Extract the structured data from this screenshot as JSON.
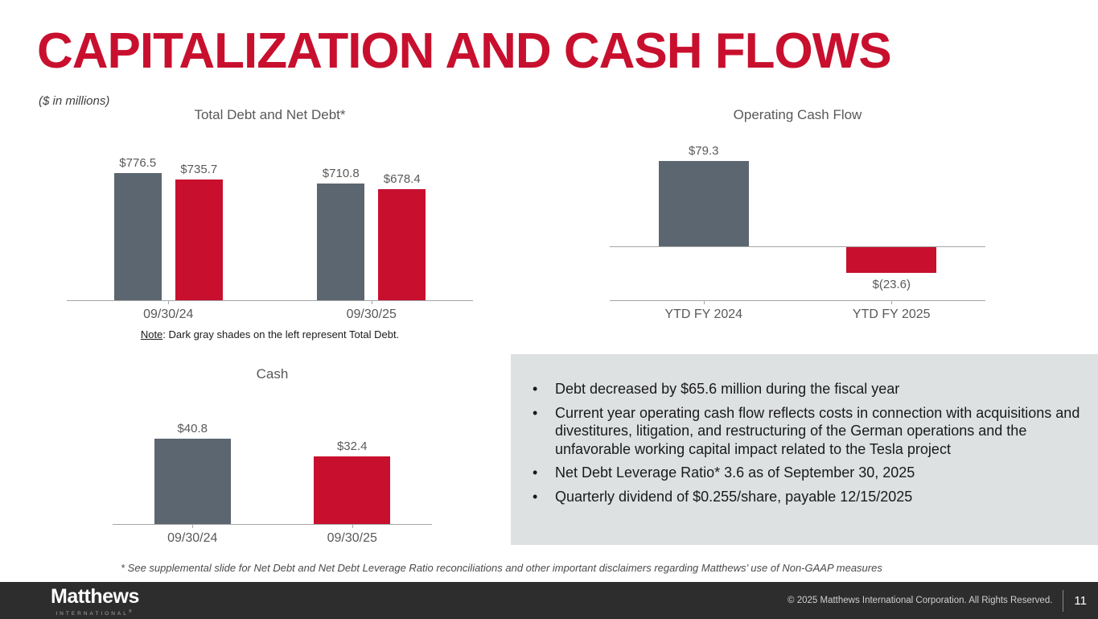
{
  "slide": {
    "title": "CAPITALIZATION AND CASH FLOWS",
    "units_note": "($ in millions)",
    "footnote": "* See supplemental slide for Net Debt and Net Debt Leverage Ratio reconciliations and other important disclaimers regarding Matthews’ use of Non-GAAP measures"
  },
  "colors": {
    "brand_red": "#C8102E",
    "slate_gray": "#5B6670",
    "chart_text": "#595959",
    "axis_line": "#A6A6A6",
    "callout_bg": "#DEE1E2",
    "footer_bg": "#2D2D2D"
  },
  "chart_data": [
    {
      "id": "total-debt-net-debt",
      "type": "bar",
      "grouped": true,
      "title": "Total Debt and Net Debt*",
      "categories": [
        "09/30/24",
        "09/30/25"
      ],
      "series": [
        {
          "name": "Total Debt",
          "color": "slate_gray",
          "values": [
            776.5,
            710.8
          ],
          "labels": [
            "$776.5",
            "$710.8"
          ]
        },
        {
          "name": "Net Debt",
          "color": "brand_red",
          "values": [
            735.7,
            678.4
          ],
          "labels": [
            "$735.7",
            "$678.4"
          ]
        }
      ],
      "note_label": "Note",
      "note_text": ": Dark gray shades on the left represent Total Debt.",
      "ylim": [
        0,
        900
      ],
      "grid": false,
      "legend": "none"
    },
    {
      "id": "operating-cash-flow",
      "type": "bar",
      "grouped": false,
      "title": "Operating Cash Flow",
      "categories": [
        "YTD FY 2024",
        "YTD FY 2025"
      ],
      "values": [
        79.3,
        -23.6
      ],
      "labels": [
        "$79.3",
        "$(23.6)"
      ],
      "bar_colors": [
        "slate_gray",
        "brand_red"
      ],
      "ylim": [
        -50,
        110
      ],
      "grid": false,
      "legend": "none"
    },
    {
      "id": "cash",
      "type": "bar",
      "grouped": false,
      "title": "Cash",
      "categories": [
        "09/30/24",
        "09/30/25"
      ],
      "values": [
        40.8,
        32.4
      ],
      "labels": [
        "$40.8",
        "$32.4"
      ],
      "bar_colors": [
        "slate_gray",
        "brand_red"
      ],
      "ylim": [
        0,
        55
      ],
      "grid": false,
      "legend": "none"
    }
  ],
  "callout": {
    "bullets": [
      "Debt decreased by $65.6 million during the fiscal year",
      "Current year operating cash flow reflects costs in connection with acquisitions and divestitures, litigation, and restructuring of the German operations and the unfavorable working capital impact related to the Tesla project",
      "Net Debt Leverage Ratio* 3.6 as of September 30, 2025",
      "Quarterly dividend of $0.255/share, payable 12/15/2025"
    ]
  },
  "footer": {
    "logo_primary": "Matthews",
    "logo_secondary": "INTERNATIONAL",
    "logo_mark": "®",
    "copyright": "© 2025 Matthews International Corporation. All Rights Reserved.",
    "page_number": "11"
  }
}
